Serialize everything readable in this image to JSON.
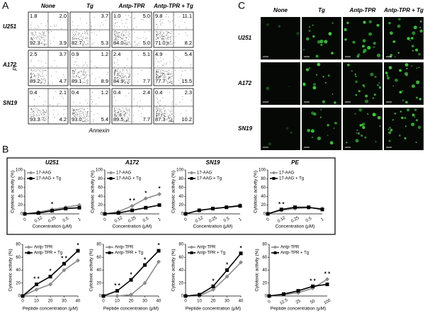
{
  "panel_a": {
    "label": "A",
    "y_label": "PI",
    "x_label": "Annexin",
    "columns": [
      "None",
      "Tg",
      "Antp-TPR",
      "Antp-TPR + Tg"
    ],
    "rows": [
      {
        "name": "U251",
        "cells": [
          {
            "ul": "1.8",
            "ur": "2.0",
            "ll": "92.3",
            "lr": "3.9"
          },
          {
            "ur": "3.7",
            "ll": "82.7",
            "lr": "5.3"
          },
          {
            "ul": "1.0",
            "ur": "5.0",
            "ll": "84.0",
            "lr": "5.0"
          },
          {
            "ul": "9.8",
            "ur": "11.1",
            "ll": "71.0",
            "lr": "8.2"
          }
        ]
      },
      {
        "name": "A172",
        "cells": [
          {
            "ul": "2.5",
            "ur": "3.7",
            "ll": "89.2",
            "lr": "4.7"
          },
          {
            "ul": "0.9",
            "ur": "1.2",
            "ll": "89.1",
            "lr": "8.9"
          },
          {
            "ul": "2.4",
            "ur": "5.1",
            "ll": "84.9",
            "lr": "7.7"
          },
          {
            "ul": "4.9",
            "ur": "5.4",
            "ll": "77.7",
            "lr": "15.5"
          }
        ]
      },
      {
        "name": "SN19",
        "cells": [
          {
            "ul": "0.4",
            "ur": "2.1",
            "ll": "93.3",
            "lr": "4.2"
          },
          {
            "ul": "0.4",
            "ur": "1.2",
            "ll": "93.0",
            "lr": "5.4"
          },
          {
            "ul": "0.4",
            "ur": "2.4",
            "ll": "89.5",
            "lr": "7.7"
          },
          {
            "ul": "0.4",
            "ur": "2.3",
            "ll": "87.3",
            "lr": "10.2"
          }
        ]
      }
    ]
  },
  "panel_b": {
    "label": "B",
    "chart_data": [
      {
        "type": "line",
        "title": "U251",
        "ylabel": "Cytotoxic activity (%)",
        "xlabel": "Concentration (μM)",
        "categories": [
          "0",
          "0.12",
          "0.25",
          "0.5",
          "1"
        ],
        "ylim": [
          0,
          100
        ],
        "yticks": [
          0,
          20,
          40,
          60,
          80,
          100
        ],
        "series": [
          {
            "name": "17-AAG",
            "color": "#8c8c8c",
            "values": [
              0,
              4,
              10,
              15,
              20
            ]
          },
          {
            "name": "17-AAG + Tg",
            "color": "#000000",
            "values": [
              0,
              2,
              7,
              12,
              14
            ]
          }
        ],
        "annotations": [
          null,
          null,
          "*",
          null,
          null
        ]
      },
      {
        "type": "line",
        "title": "A172",
        "ylabel": "Cytotoxic activity (%)",
        "xlabel": "Concentration (μM)",
        "categories": [
          "0",
          "0.12",
          "0.25",
          "0.5",
          "1"
        ],
        "ylim": [
          0,
          100
        ],
        "yticks": [
          0,
          20,
          40,
          60,
          80,
          100
        ],
        "series": [
          {
            "name": "17-AAG",
            "color": "#8c8c8c",
            "values": [
              0,
              5,
              18,
              35,
              45
            ]
          },
          {
            "name": "17-AAG + Tg",
            "color": "#000000",
            "values": [
              0,
              2,
              8,
              14,
              20
            ]
          }
        ],
        "annotations": [
          null,
          null,
          "* *",
          "*",
          "*"
        ]
      },
      {
        "type": "line",
        "title": "SN19",
        "ylabel": "Cytotoxic activity (%)",
        "xlabel": "Concentration (μM)",
        "categories": [
          "0",
          "0.12",
          "0.25",
          "0.5",
          "1"
        ],
        "ylim": [
          0,
          100
        ],
        "yticks": [
          0,
          20,
          40,
          60,
          80,
          100
        ],
        "series": [
          {
            "name": "17-AAG",
            "color": "#8c8c8c",
            "values": [
              0,
              8,
              12,
              15,
              20
            ]
          },
          {
            "name": "17-AAG + Tg",
            "color": "#000000",
            "values": [
              0,
              8,
              12,
              15,
              18
            ]
          }
        ],
        "annotations": [
          null,
          null,
          null,
          null,
          null
        ]
      },
      {
        "type": "line",
        "title": "PE",
        "ylabel": "Cytotoxic activity (%)",
        "xlabel": "Concentration (μM)",
        "categories": [
          "0",
          "0.12",
          "0.25",
          "0.5",
          "1"
        ],
        "ylim": [
          0,
          100
        ],
        "yticks": [
          0,
          20,
          40,
          60,
          80,
          100
        ],
        "series": [
          {
            "name": "17-AAG",
            "color": "#8c8c8c",
            "values": [
              0,
              8,
              12,
              14,
              12
            ]
          },
          {
            "name": "17-AAG + Tg",
            "color": "#000000",
            "values": [
              0,
              10,
              15,
              15,
              10
            ]
          }
        ],
        "annotations": [
          null,
          "* *",
          null,
          null,
          null
        ]
      },
      {
        "type": "line",
        "ylabel": "Cytotoxic activity (%)",
        "xlabel": "Peptide concentration (μM)",
        "x": [
          0,
          10,
          20,
          30,
          40
        ],
        "xlim": [
          0,
          40
        ],
        "xticks": [
          0,
          10,
          20,
          30,
          40
        ],
        "ylim": [
          0,
          80
        ],
        "yticks": [
          0,
          20,
          40,
          60,
          80
        ],
        "series": [
          {
            "name": "Antp-TPR",
            "color": "#8c8c8c",
            "values": [
              0,
              10,
              18,
              40,
              55
            ]
          },
          {
            "name": "Antp-TPR + Tg",
            "color": "#000000",
            "values": [
              0,
              18,
              30,
              50,
              70
            ]
          }
        ],
        "annotations": [
          null,
          "* *",
          "*",
          "* *",
          "*"
        ]
      },
      {
        "type": "line",
        "ylabel": "Cytotoxic activity (%)",
        "xlabel": "Peptide concentration (μM)",
        "x": [
          0,
          10,
          20,
          30,
          40
        ],
        "xlim": [
          0,
          40
        ],
        "xticks": [
          0,
          10,
          20,
          30,
          40
        ],
        "ylim": [
          0,
          80
        ],
        "yticks": [
          0,
          20,
          40,
          60,
          80
        ],
        "series": [
          {
            "name": "Antp-TPR",
            "color": "#8c8c8c",
            "values": [
              0,
              0,
              2,
              20,
              53
            ]
          },
          {
            "name": "Antp-TPR + Tg",
            "color": "#000000",
            "values": [
              0,
              8,
              25,
              48,
              70
            ]
          }
        ],
        "annotations": [
          null,
          "* *",
          "*",
          "*",
          "*"
        ]
      },
      {
        "type": "line",
        "ylabel": "Cytotoxic activity (%)",
        "xlabel": "Peptide concentration (μM)",
        "x": [
          0,
          10,
          20,
          30,
          40
        ],
        "xlim": [
          0,
          40
        ],
        "xticks": [
          0,
          10,
          20,
          30,
          40
        ],
        "ylim": [
          0,
          80
        ],
        "yticks": [
          0,
          20,
          40,
          60,
          80
        ],
        "series": [
          {
            "name": "Antp-TPR",
            "color": "#8c8c8c",
            "values": [
              0,
              0,
              10,
              30,
              52
            ]
          },
          {
            "name": "Antp-TPR + Tg",
            "color": "#000000",
            "values": [
              0,
              2,
              15,
              40,
              66
            ]
          }
        ],
        "annotations": [
          null,
          null,
          "*",
          "*",
          "*"
        ]
      },
      {
        "type": "line",
        "ylabel": "Cytotoxic activity (%)",
        "xlabel": "Peptide concentration (μM)",
        "categories": [
          "0",
          "12.5",
          "25",
          "50",
          "100"
        ],
        "ylim": [
          0,
          80
        ],
        "yticks": [
          0,
          20,
          40,
          60,
          80
        ],
        "series": [
          {
            "name": "Antp-TPR",
            "color": "#8c8c8c",
            "values": [
              0,
              2,
              5,
              12,
              26
            ]
          },
          {
            "name": "Antp-TPR + Tg",
            "color": "#000000",
            "values": [
              0,
              3,
              8,
              15,
              18
            ]
          }
        ],
        "annotations": [
          null,
          null,
          null,
          "* *",
          "* *"
        ]
      }
    ]
  },
  "panel_c": {
    "label": "C",
    "columns": [
      "None",
      "Tg",
      "Antp-TPR",
      "Antp-TPR + Tg"
    ],
    "rows": [
      "U251",
      "A172",
      "SN19"
    ]
  }
}
